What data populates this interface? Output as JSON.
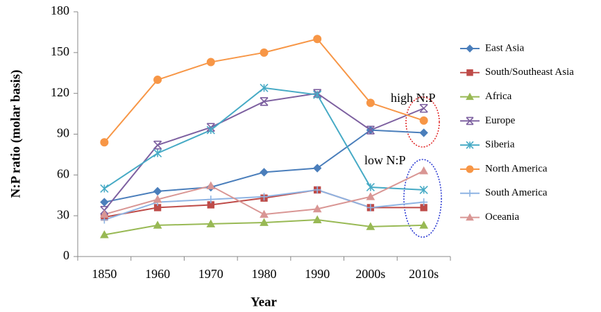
{
  "chart_data": {
    "type": "line",
    "x_label": "Year",
    "y_label": "N:P ratio (molar basis)",
    "categories": [
      "1850",
      "1960",
      "1970",
      "1980",
      "1990",
      "2000s",
      "2010s"
    ],
    "ylim": [
      0,
      180
    ],
    "yticks": [
      0,
      30,
      60,
      90,
      120,
      150,
      180
    ],
    "annotations": [
      "high N:P",
      "low N:P"
    ],
    "legend": "right",
    "series": [
      {
        "name": "East Asia",
        "color": "#4a7ebb",
        "marker": "diamond",
        "values": [
          40,
          48,
          51,
          62,
          65,
          93,
          91
        ]
      },
      {
        "name": "South/Southeast Asia",
        "color": "#be4b48",
        "marker": "square",
        "values": [
          29,
          36,
          38,
          43,
          49,
          36,
          36
        ]
      },
      {
        "name": "Africa",
        "color": "#98b954",
        "marker": "triangle",
        "values": [
          16,
          23,
          24,
          25,
          27,
          22,
          23
        ]
      },
      {
        "name": "Europe",
        "color": "#7d60a0",
        "marker": "hourglass",
        "values": [
          34,
          82,
          95,
          114,
          120,
          93,
          109
        ]
      },
      {
        "name": "Siberia",
        "color": "#46aac5",
        "marker": "asterisk",
        "values": [
          50,
          76,
          93,
          124,
          119,
          51,
          49
        ]
      },
      {
        "name": "North America",
        "color": "#f79646",
        "marker": "circle",
        "values": [
          84,
          130,
          143,
          150,
          160,
          113,
          100
        ]
      },
      {
        "name": "South America",
        "color": "#8eb4e3",
        "marker": "plus",
        "values": [
          27,
          40,
          42,
          44,
          49,
          36,
          40
        ]
      },
      {
        "name": "Oceania",
        "color": "#d99694",
        "marker": "triangle",
        "values": [
          31,
          42,
          52,
          31,
          35,
          44,
          63
        ]
      }
    ]
  }
}
